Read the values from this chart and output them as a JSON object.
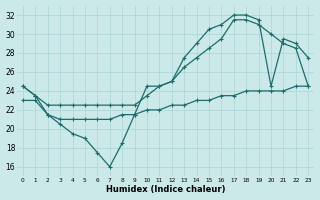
{
  "xlabel": "Humidex (Indice chaleur)",
  "background_color": "#cce9ea",
  "grid_color": "#aad4d6",
  "line_color": "#1e6b6b",
  "xlim": [
    -0.5,
    23.5
  ],
  "ylim": [
    15,
    33
  ],
  "xticks": [
    0,
    1,
    2,
    3,
    4,
    5,
    6,
    7,
    8,
    9,
    10,
    11,
    12,
    13,
    14,
    15,
    16,
    17,
    18,
    19,
    20,
    21,
    22,
    23
  ],
  "yticks": [
    16,
    18,
    20,
    22,
    24,
    26,
    28,
    30,
    32
  ],
  "line1_x": [
    0,
    1,
    2,
    3,
    4,
    5,
    6,
    7,
    8,
    9,
    10,
    11,
    12,
    13,
    14,
    15,
    16,
    17,
    18,
    19,
    20,
    21,
    22,
    23
  ],
  "line1_y": [
    24.5,
    23.5,
    21.5,
    20.5,
    19.5,
    19.0,
    17.5,
    16.0,
    18.5,
    21.5,
    24.5,
    24.5,
    25.0,
    27.5,
    29.0,
    30.5,
    31.0,
    32.0,
    32.0,
    31.5,
    24.5,
    29.5,
    29.0,
    27.5
  ],
  "line2_x": [
    0,
    1,
    2,
    3,
    4,
    5,
    6,
    7,
    8,
    9,
    10,
    11,
    12,
    13,
    14,
    15,
    16,
    17,
    18,
    19,
    20,
    21,
    22,
    23
  ],
  "line2_y": [
    24.5,
    23.5,
    22.5,
    22.5,
    22.5,
    22.5,
    22.5,
    22.5,
    22.5,
    22.5,
    23.5,
    24.5,
    25.0,
    26.5,
    27.5,
    28.5,
    29.5,
    31.5,
    31.5,
    31.0,
    30.0,
    29.0,
    28.5,
    24.5
  ],
  "line3_x": [
    0,
    1,
    2,
    3,
    4,
    5,
    6,
    7,
    8,
    9,
    10,
    11,
    12,
    13,
    14,
    15,
    16,
    17,
    18,
    19,
    20,
    21,
    22,
    23
  ],
  "line3_y": [
    23.0,
    23.0,
    21.5,
    21.0,
    21.0,
    21.0,
    21.0,
    21.0,
    21.5,
    21.5,
    22.0,
    22.0,
    22.5,
    22.5,
    23.0,
    23.0,
    23.5,
    23.5,
    24.0,
    24.0,
    24.0,
    24.0,
    24.5,
    24.5
  ]
}
